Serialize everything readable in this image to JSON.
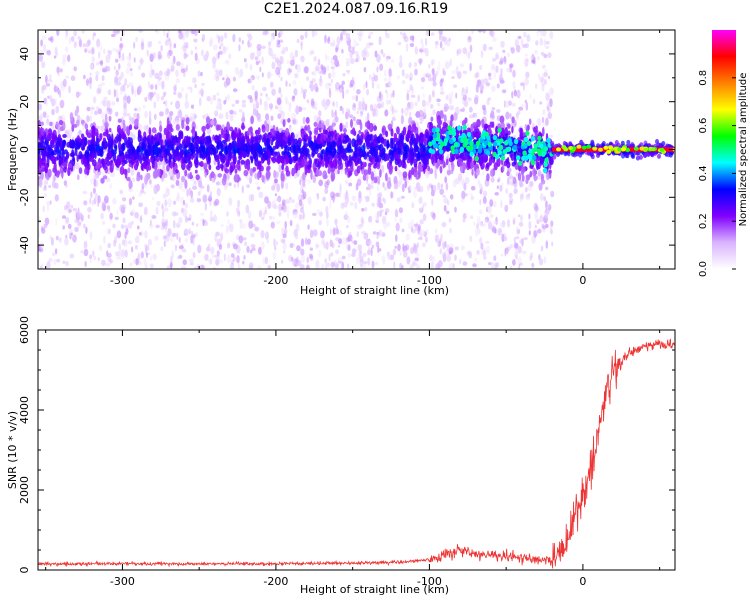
{
  "page": {
    "title": "C2E1.2024.087.09.16.R19"
  },
  "chart_data": [
    {
      "type": "heatmap",
      "title": "C2E1.2024.087.09.16.R19",
      "xlabel": "Height of straight line (km)",
      "ylabel": "Frequency (Hz)",
      "xlim": [
        -355,
        60
      ],
      "ylim": [
        -50,
        50
      ],
      "x_ticks": [
        -300,
        -200,
        -100,
        0
      ],
      "x_tick_labels": [
        "-300",
        "-200",
        "-100",
        "0"
      ],
      "y_ticks": [
        -40,
        -20,
        0,
        20,
        40
      ],
      "y_tick_labels": [
        "-40",
        "-20",
        "0",
        "20",
        "40"
      ],
      "colorbar": {
        "label": "Normalized spectral amplitude",
        "range": [
          0,
          1
        ],
        "ticks": [
          0.0,
          0.2,
          0.4,
          0.6,
          0.8
        ],
        "tick_labels": [
          "0.0",
          "0.2",
          "0.4",
          "0.6",
          "0.8"
        ],
        "colormap": [
          "#ffffff",
          "#d9b3ff",
          "#8000ff",
          "#0000ff",
          "#00ffff",
          "#00ff00",
          "#ffff00",
          "#ff8000",
          "#ff0000",
          "#ff00ff"
        ]
      },
      "regions": [
        {
          "x_range": [
            -355,
            -20
          ],
          "peak_frequency_hz": 0,
          "core_halfwidth_hz": 8,
          "description_amplitude": 0.2,
          "scatter_amplitude": 0.05
        },
        {
          "x_range": [
            -100,
            -20
          ],
          "peak_frequency_hz": 3,
          "core_halfwidth_hz": 6,
          "description_amplitude": 0.3,
          "scatter_amplitude": 0.05
        },
        {
          "x_range": [
            -20,
            60
          ],
          "peak_frequency_hz": 0,
          "core_halfwidth_hz": 2,
          "description_amplitude": 0.95,
          "scatter_amplitude": 0.02
        }
      ],
      "grid": false
    },
    {
      "type": "line",
      "xlabel": "Height of straight line (km)",
      "ylabel": "SNR (10 * v/v)",
      "xlim": [
        -355,
        60
      ],
      "ylim": [
        0,
        6000
      ],
      "x_ticks": [
        -300,
        -200,
        -100,
        0
      ],
      "x_tick_labels": [
        "-300",
        "-200",
        "-100",
        "0"
      ],
      "y_ticks": [
        0,
        2000,
        4000,
        6000
      ],
      "y_tick_labels": [
        "0",
        "2000",
        "4000",
        "6000"
      ],
      "line_color": "#ee3333",
      "grid": false,
      "series": [
        {
          "x": [
            -355,
            -300,
            -250,
            -200,
            -150,
            -120,
            -100,
            -90,
            -80,
            -70,
            -60,
            -50,
            -40,
            -30,
            -20,
            -10,
            0,
            5,
            10,
            15,
            20,
            30,
            40,
            50,
            60
          ],
          "y": [
            150,
            160,
            155,
            160,
            170,
            200,
            250,
            400,
            500,
            420,
            380,
            330,
            300,
            250,
            200,
            800,
            1900,
            2600,
            3400,
            4500,
            5000,
            5400,
            5600,
            5650,
            5600
          ]
        }
      ]
    }
  ]
}
